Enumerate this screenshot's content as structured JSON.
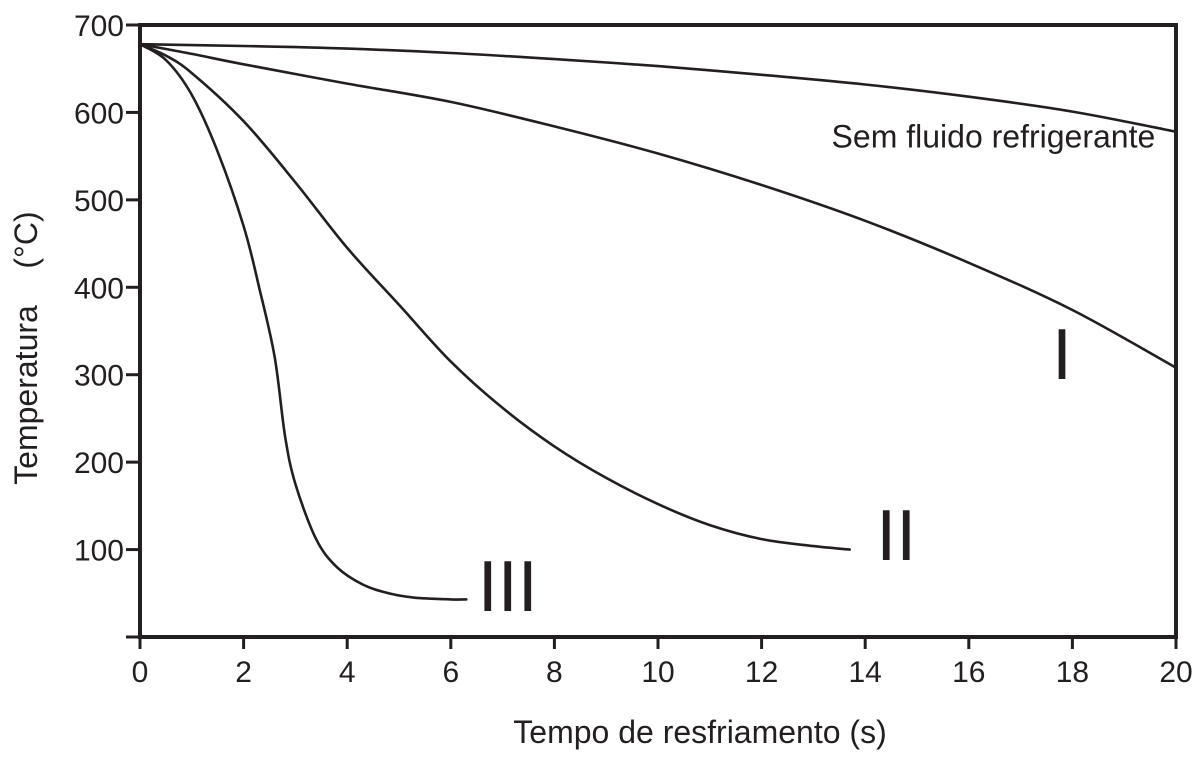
{
  "chart_data": {
    "type": "line",
    "xlabel": "Tempo de resfriamento (s)",
    "ylabel_main": "Temperatura",
    "ylabel_unit": "(°C)",
    "xlim": [
      0,
      20
    ],
    "ylim": [
      0,
      700
    ],
    "x_ticks": [
      0,
      2,
      4,
      6,
      8,
      10,
      12,
      14,
      16,
      18,
      20
    ],
    "y_ticks": [
      100,
      200,
      300,
      400,
      500,
      600,
      700
    ],
    "grid": false,
    "series": [
      {
        "name": "Sem fluido refrigerante",
        "x": [
          0,
          2,
          4,
          6,
          8,
          10,
          12,
          14,
          16,
          18,
          20
        ],
        "y": [
          678,
          676,
          673,
          668,
          661,
          653,
          643,
          632,
          618,
          601,
          578
        ]
      },
      {
        "name": "I",
        "x": [
          0,
          1,
          2,
          4,
          6,
          8,
          10,
          12,
          14,
          16,
          18,
          20
        ],
        "y": [
          678,
          667,
          655,
          633,
          612,
          584,
          553,
          517,
          476,
          428,
          374,
          308
        ]
      },
      {
        "name": "II",
        "x": [
          0,
          0.5,
          1,
          2,
          3,
          4,
          5,
          6,
          7,
          8,
          9,
          10,
          11,
          12,
          13,
          13.7
        ],
        "y": [
          678,
          665,
          645,
          590,
          520,
          445,
          380,
          315,
          262,
          218,
          182,
          152,
          128,
          112,
          104,
          100
        ]
      },
      {
        "name": "III",
        "x": [
          0,
          0.5,
          1,
          1.5,
          2,
          2.3,
          2.6,
          2.8,
          3,
          3.4,
          3.8,
          4.3,
          4.8,
          5.3,
          6,
          6.3
        ],
        "y": [
          678,
          660,
          620,
          555,
          470,
          400,
          320,
          230,
          175,
          112,
          80,
          60,
          50,
          45,
          43,
          43
        ]
      }
    ],
    "annotations": [
      {
        "text": "Sem fluido refrigerante",
        "x": 19.6,
        "y": 560,
        "size": "small"
      },
      {
        "text": "I",
        "x": 17.8,
        "y": 295,
        "size": "large"
      },
      {
        "text": "II",
        "x": 14.6,
        "y": 88,
        "size": "large"
      },
      {
        "text": "III",
        "x": 7.1,
        "y": 30,
        "size": "large"
      }
    ]
  }
}
